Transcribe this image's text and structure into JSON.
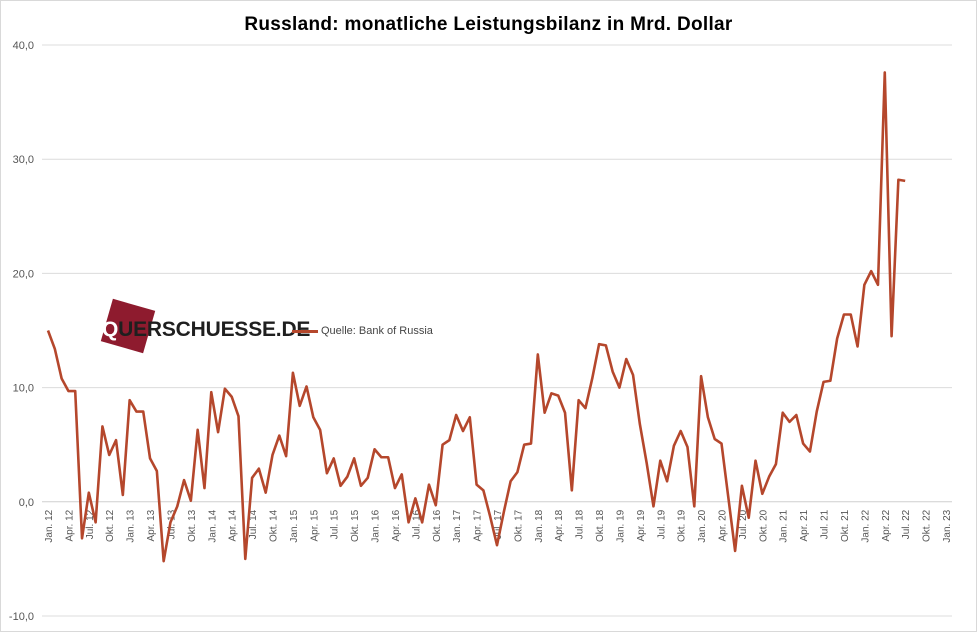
{
  "chart_data": {
    "type": "line",
    "title": "Russland: monatliche Leistungsbilanz  in Mrd. Dollar",
    "xlabel": "",
    "ylabel": "",
    "ylim": [
      -10,
      40
    ],
    "y_ticks": [
      -10,
      0,
      10,
      20,
      30,
      40
    ],
    "y_tick_labels": [
      "-10,0",
      "0,0",
      "10,0",
      "20,0",
      "30,0",
      "40,0"
    ],
    "grid": "horizontal",
    "x_start": "2012-01",
    "x_end": "2023-01",
    "x_tick_labels": [
      "Jan. 12",
      "Apr. 12",
      "Jul. 12",
      "Okt. 12",
      "Jan. 13",
      "Apr. 13",
      "Jul. 13",
      "Okt. 13",
      "Jan. 14",
      "Apr. 14",
      "Jul. 14",
      "Okt. 14",
      "Jan. 15",
      "Apr. 15",
      "Jul. 15",
      "Okt. 15",
      "Jan. 16",
      "Apr. 16",
      "Jul. 16",
      "Okt. 16",
      "Jan. 17",
      "Apr. 17",
      "Jul. 17",
      "Okt. 17",
      "Jan. 18",
      "Apr. 18",
      "Jul. 18",
      "Okt. 18",
      "Jan. 19",
      "Apr. 19",
      "Jul. 19",
      "Okt. 19",
      "Jan. 20",
      "Apr. 20",
      "Jul. 20",
      "Okt. 20",
      "Jan. 21",
      "Apr. 21",
      "Jul. 21",
      "Okt. 21",
      "Jan. 22",
      "Apr. 22",
      "Jul. 22",
      "Okt. 22",
      "Jan. 23"
    ],
    "series": [
      {
        "name": "Quelle: Bank of Russia",
        "color": "#b5472c",
        "values": [
          15.0,
          13.4,
          10.8,
          9.7,
          9.7,
          -3.2,
          0.8,
          -1.8,
          6.6,
          4.1,
          5.4,
          0.6,
          8.9,
          7.9,
          7.9,
          3.8,
          2.7,
          -5.2,
          -1.8,
          -0.4,
          1.9,
          0.1,
          6.3,
          1.2,
          9.6,
          6.1,
          9.9,
          9.2,
          7.5,
          -5.0,
          2.1,
          2.9,
          0.8,
          4.1,
          5.8,
          4.0,
          11.3,
          8.4,
          10.1,
          7.4,
          6.3,
          2.5,
          3.8,
          1.4,
          2.2,
          3.8,
          1.4,
          2.1,
          4.6,
          3.9,
          3.9,
          1.2,
          2.4,
          -1.8,
          0.3,
          -1.8,
          1.5,
          -0.3,
          5.0,
          5.4,
          7.6,
          6.2,
          7.4,
          1.5,
          1.0,
          -1.3,
          -3.8,
          -0.9,
          1.8,
          2.6,
          5.0,
          5.1,
          12.9,
          7.8,
          9.5,
          9.3,
          7.8,
          1.0,
          8.9,
          8.2,
          10.8,
          13.8,
          13.7,
          11.4,
          10.0,
          12.5,
          11.1,
          6.8,
          3.4,
          -0.4,
          3.6,
          1.8,
          4.9,
          6.2,
          4.8,
          -0.4,
          11.0,
          7.4,
          5.5,
          5.1,
          0.4,
          -4.3,
          1.4,
          -1.4,
          3.6,
          0.7,
          2.2,
          3.3,
          7.8,
          7.0,
          7.6,
          5.1,
          4.4,
          7.9,
          10.5,
          10.6,
          14.3,
          16.4,
          16.4,
          13.6,
          19.0,
          20.2,
          19.0,
          37.6,
          14.5,
          28.2,
          28.1
        ]
      }
    ]
  },
  "logo": {
    "prefix": "Q",
    "rest": "UERSCHUESSE.DE"
  }
}
